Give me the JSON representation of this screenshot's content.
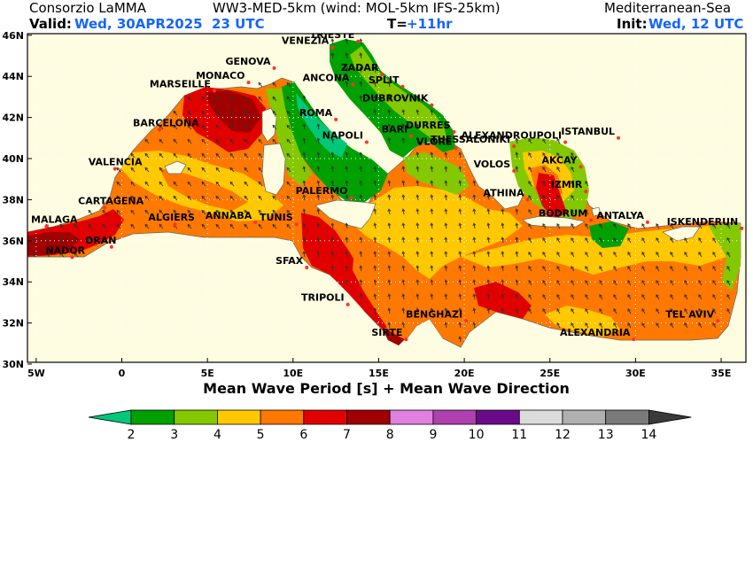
{
  "header": {
    "org": "Consorzio LaMMA",
    "model": "WW3-MED-5km (wind: MOL-5km IFS-25km)",
    "region": "Mediterranean-Sea",
    "valid_label": "Valid:",
    "valid_value": "Wed, 30APR2025  23 UTC",
    "t_label": "T=",
    "t_value": "+11hr",
    "init_label": "Init:",
    "init_value": "Wed, 12 UTC"
  },
  "map": {
    "lat_ticks": [
      "46N",
      "44N",
      "42N",
      "40N",
      "38N",
      "36N",
      "34N",
      "32N",
      "30N"
    ],
    "lon_ticks": [
      "5W",
      "0",
      "5E",
      "10E",
      "15E",
      "20E",
      "25E",
      "30E",
      "35E"
    ],
    "caption": "Mean Wave Period [s] + Mean Wave Direction",
    "cities": [
      {
        "name": "VENEZIA",
        "lon": 12.3,
        "lat": 45.4
      },
      {
        "name": "TRIESTE",
        "lon": 13.8,
        "lat": 45.7
      },
      {
        "name": "MONACO",
        "lon": 7.4,
        "lat": 43.7
      },
      {
        "name": "GENOVA",
        "lon": 8.9,
        "lat": 44.4
      },
      {
        "name": "MARSEILLE",
        "lon": 5.4,
        "lat": 43.3
      },
      {
        "name": "ZADAR",
        "lon": 15.2,
        "lat": 44.1
      },
      {
        "name": "ANCONA",
        "lon": 13.5,
        "lat": 43.6
      },
      {
        "name": "SPLIT",
        "lon": 16.4,
        "lat": 43.5
      },
      {
        "name": "DUBROVNIK",
        "lon": 18.1,
        "lat": 42.6
      },
      {
        "name": "ROMA",
        "lon": 12.5,
        "lat": 41.9
      },
      {
        "name": "BARCELONA",
        "lon": 2.2,
        "lat": 41.4
      },
      {
        "name": "DURRES",
        "lon": 19.4,
        "lat": 41.3
      },
      {
        "name": "ALEXANDROUPOLI",
        "lon": 25.9,
        "lat": 40.8
      },
      {
        "name": "NAPOLI",
        "lon": 14.3,
        "lat": 40.8
      },
      {
        "name": "THESSALONIKI",
        "lon": 22.9,
        "lat": 40.6
      },
      {
        "name": "ISTANBUL",
        "lon": 29.0,
        "lat": 41.0
      },
      {
        "name": "BARI",
        "lon": 16.9,
        "lat": 41.1
      },
      {
        "name": "VLORE",
        "lon": 19.5,
        "lat": 40.5
      },
      {
        "name": "VALENCIA",
        "lon": -0.4,
        "lat": 39.5
      },
      {
        "name": "VOLOS",
        "lon": 22.9,
        "lat": 39.4
      },
      {
        "name": "AKCAY",
        "lon": 26.8,
        "lat": 39.6
      },
      {
        "name": "IZMIR",
        "lon": 27.1,
        "lat": 38.4
      },
      {
        "name": "ATHINA",
        "lon": 23.7,
        "lat": 38.0
      },
      {
        "name": "CARTAGENA",
        "lon": -1.0,
        "lat": 37.6
      },
      {
        "name": "PALERMO",
        "lon": 13.4,
        "lat": 38.1
      },
      {
        "name": "BODRUM",
        "lon": 27.4,
        "lat": 37.0
      },
      {
        "name": "MALAGA",
        "lon": -4.4,
        "lat": 36.7
      },
      {
        "name": "ANTALYA",
        "lon": 30.7,
        "lat": 36.9
      },
      {
        "name": "ISKENDERUN",
        "lon": 36.2,
        "lat": 36.6
      },
      {
        "name": "ALGIERS",
        "lon": 3.1,
        "lat": 36.8
      },
      {
        "name": "ANNABA",
        "lon": 7.8,
        "lat": 36.9
      },
      {
        "name": "TUNIS",
        "lon": 10.2,
        "lat": 36.8
      },
      {
        "name": "ORAN",
        "lon": -0.6,
        "lat": 35.7
      },
      {
        "name": "NADOR",
        "lon": -2.9,
        "lat": 35.2
      },
      {
        "name": "SFAX",
        "lon": 10.8,
        "lat": 34.7
      },
      {
        "name": "TEL AVIV",
        "lon": 34.8,
        "lat": 32.1
      },
      {
        "name": "TRIPOLI",
        "lon": 13.2,
        "lat": 32.9
      },
      {
        "name": "BENGHAZI",
        "lon": 20.1,
        "lat": 32.1
      },
      {
        "name": "SIRTE",
        "lon": 16.6,
        "lat": 31.2
      },
      {
        "name": "ALEXANDRIA",
        "lon": 29.9,
        "lat": 31.2
      }
    ]
  },
  "colorbar": {
    "labels": [
      "2",
      "3",
      "4",
      "5",
      "6",
      "7",
      "8",
      "9",
      "10",
      "11",
      "12",
      "13",
      "14"
    ],
    "colors": [
      "#00c878",
      "#00a000",
      "#84c800",
      "#ffc800",
      "#ff7800",
      "#e10000",
      "#a00000",
      "#e080e0",
      "#b040b0",
      "#6a0a8a",
      "#dcdcdc",
      "#b0b0b0",
      "#7a7a7a"
    ]
  }
}
